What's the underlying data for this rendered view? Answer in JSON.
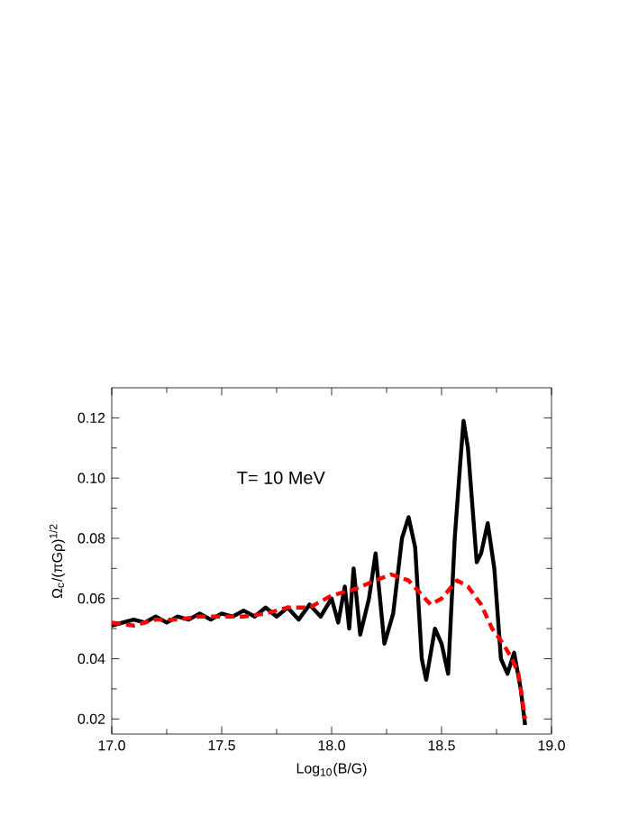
{
  "chart_data": {
    "type": "line",
    "xlabel": "Log$_{10}$(B/G)",
    "ylabel": "Ω$_{c}$/(πGρ)$^{1/2}$",
    "annotations": [
      "T= 10 MeV"
    ],
    "xlim": [
      17.0,
      19.0
    ],
    "ylim": [
      0.015,
      0.13
    ],
    "xticks": [
      {
        "value": 17.0,
        "label": "17.0"
      },
      {
        "value": 17.5,
        "label": "17.5"
      },
      {
        "value": 18.0,
        "label": "18.0"
      },
      {
        "value": 18.5,
        "label": "18.5"
      },
      {
        "value": 19.0,
        "label": "19.0"
      }
    ],
    "yticks": [
      {
        "value": 0.02,
        "label": "0.02"
      },
      {
        "value": 0.04,
        "label": "0.04"
      },
      {
        "value": 0.06,
        "label": "0.06"
      },
      {
        "value": 0.08,
        "label": "0.08"
      },
      {
        "value": 0.1,
        "label": "0.10"
      },
      {
        "value": 0.12,
        "label": "0.12"
      }
    ],
    "grid": false,
    "series": [
      {
        "color": "#000000",
        "line_style": "solid",
        "x": [
          17.0,
          17.05,
          17.1,
          17.15,
          17.2,
          17.25,
          17.3,
          17.35,
          17.4,
          17.45,
          17.5,
          17.55,
          17.6,
          17.65,
          17.7,
          17.75,
          17.8,
          17.85,
          17.9,
          17.95,
          18.0,
          18.03,
          18.06,
          18.08,
          18.1,
          18.13,
          18.17,
          18.2,
          18.24,
          18.28,
          18.32,
          18.35,
          18.38,
          18.41,
          18.43,
          18.47,
          18.5,
          18.53,
          18.56,
          18.585,
          18.6,
          18.62,
          18.66,
          18.68,
          18.71,
          18.74,
          18.77,
          18.8,
          18.83,
          18.86,
          18.88
        ],
        "values": [
          0.051,
          0.052,
          0.053,
          0.052,
          0.054,
          0.052,
          0.054,
          0.053,
          0.055,
          0.053,
          0.055,
          0.054,
          0.056,
          0.054,
          0.057,
          0.054,
          0.057,
          0.053,
          0.058,
          0.054,
          0.06,
          0.052,
          0.064,
          0.05,
          0.07,
          0.048,
          0.06,
          0.075,
          0.045,
          0.055,
          0.08,
          0.087,
          0.077,
          0.04,
          0.033,
          0.05,
          0.045,
          0.035,
          0.08,
          0.105,
          0.119,
          0.11,
          0.072,
          0.075,
          0.085,
          0.07,
          0.04,
          0.035,
          0.042,
          0.03,
          0.018
        ]
      },
      {
        "color": "#ff0000",
        "line_style": "dashed",
        "x": [
          17.0,
          17.1,
          17.2,
          17.3,
          17.4,
          17.5,
          17.6,
          17.7,
          17.8,
          17.9,
          18.0,
          18.1,
          18.2,
          18.27,
          18.35,
          18.45,
          18.5,
          18.57,
          18.62,
          18.68,
          18.73,
          18.78,
          18.82,
          18.85,
          18.88
        ],
        "values": [
          0.052,
          0.051,
          0.053,
          0.053,
          0.054,
          0.054,
          0.054,
          0.055,
          0.057,
          0.057,
          0.061,
          0.063,
          0.066,
          0.068,
          0.066,
          0.058,
          0.06,
          0.066,
          0.064,
          0.058,
          0.05,
          0.045,
          0.04,
          0.035,
          0.02
        ]
      }
    ]
  }
}
